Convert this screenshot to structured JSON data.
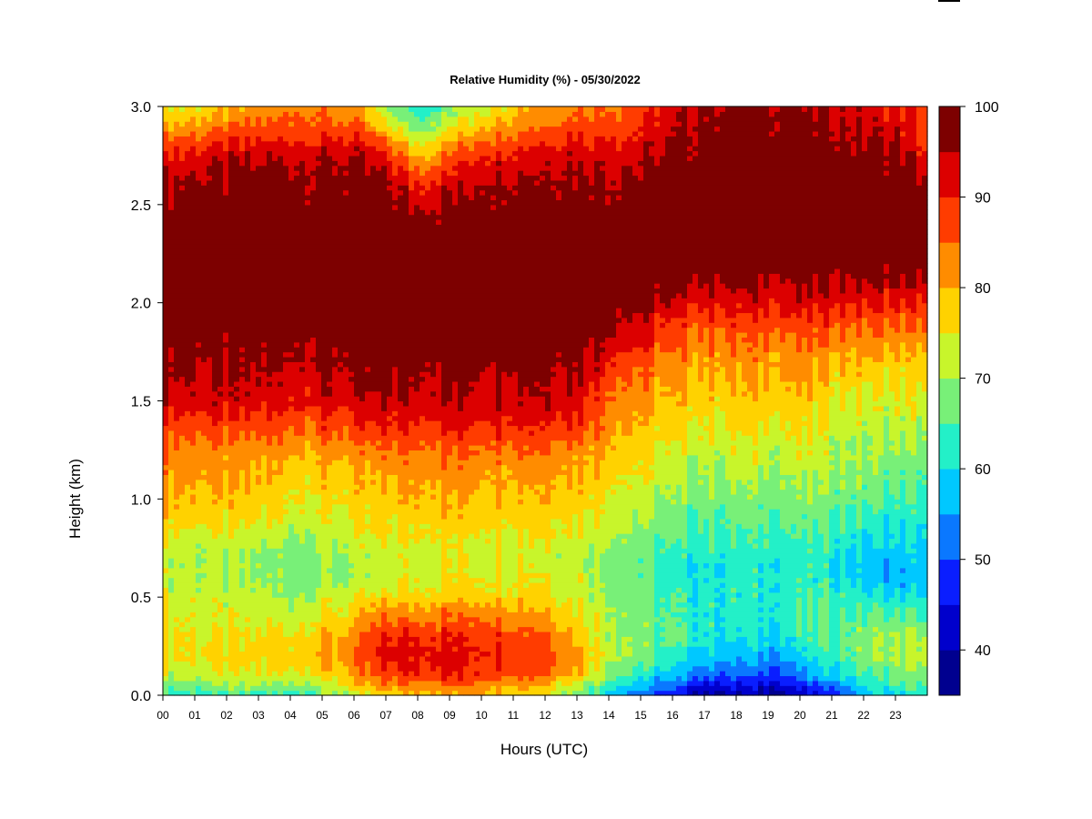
{
  "chart_data": {
    "type": "heatmap",
    "title": "Relative Humidity (%) - 05/30/2022",
    "xlabel": "Hours (UTC)",
    "ylabel": "Height (km)",
    "xlim": [
      0,
      24
    ],
    "ylim": [
      0.0,
      3.0
    ],
    "x_ticks": [
      "00",
      "01",
      "02",
      "03",
      "04",
      "05",
      "06",
      "07",
      "08",
      "09",
      "10",
      "11",
      "12",
      "13",
      "14",
      "15",
      "16",
      "17",
      "18",
      "19",
      "20",
      "21",
      "22",
      "23"
    ],
    "y_ticks": [
      "0.0",
      "0.5",
      "1.0",
      "1.5",
      "2.0",
      "2.5",
      "3.0"
    ],
    "colorbar": {
      "levels": [
        35,
        40,
        45,
        50,
        55,
        60,
        65,
        70,
        75,
        80,
        85,
        90,
        95,
        100
      ],
      "labels": [
        "40",
        "50",
        "60",
        "70",
        "80",
        "90",
        "100"
      ],
      "colors": [
        "#00008f",
        "#0000cc",
        "#0a1eff",
        "#0a78ff",
        "#00c8ff",
        "#23f0c8",
        "#78f078",
        "#c8f52b",
        "#ffd200",
        "#ff8c00",
        "#ff3c00",
        "#dc0000",
        "#7d0000"
      ]
    },
    "heights_km": [
      0.0,
      0.05,
      0.1,
      0.2,
      0.3,
      0.4,
      0.5,
      0.6,
      0.7,
      0.8,
      0.9,
      1.0,
      1.1,
      1.2,
      1.3,
      1.4,
      1.5,
      1.6,
      1.7,
      1.8,
      1.9,
      2.0,
      2.1,
      2.2,
      2.3,
      2.4,
      2.5,
      2.6,
      2.7,
      2.8,
      2.9,
      3.0
    ],
    "hours_utc": [
      0,
      2,
      4,
      6,
      7,
      8,
      10,
      12,
      13,
      14,
      15,
      16,
      17,
      18,
      19,
      20,
      21,
      22,
      23,
      24
    ],
    "rh_percent": [
      [
        62,
        63,
        62,
        70,
        76,
        80,
        80,
        76,
        68,
        60,
        52,
        45,
        40,
        40,
        38,
        40,
        48,
        55,
        60,
        62
      ],
      [
        66,
        68,
        68,
        76,
        82,
        84,
        84,
        80,
        72,
        64,
        56,
        50,
        45,
        44,
        42,
        45,
        52,
        60,
        64,
        65
      ],
      [
        72,
        73,
        74,
        80,
        87,
        90,
        90,
        86,
        80,
        70,
        62,
        56,
        52,
        50,
        48,
        52,
        58,
        64,
        66,
        68
      ],
      [
        76,
        76,
        78,
        84,
        92,
        92,
        92,
        88,
        82,
        74,
        68,
        62,
        58,
        57,
        56,
        58,
        64,
        68,
        70,
        72
      ],
      [
        76,
        75,
        76,
        82,
        90,
        90,
        90,
        86,
        80,
        72,
        68,
        64,
        62,
        60,
        60,
        62,
        66,
        68,
        70,
        70
      ],
      [
        75,
        73,
        73,
        78,
        84,
        84,
        86,
        82,
        78,
        72,
        68,
        64,
        62,
        62,
        62,
        64,
        66,
        66,
        66,
        66
      ],
      [
        74,
        72,
        70,
        74,
        76,
        78,
        78,
        78,
        74,
        70,
        66,
        64,
        62,
        62,
        62,
        64,
        64,
        62,
        60,
        60
      ],
      [
        72,
        70,
        68,
        70,
        72,
        74,
        76,
        76,
        74,
        70,
        66,
        62,
        62,
        62,
        62,
        62,
        62,
        58,
        56,
        56
      ],
      [
        72,
        70,
        68,
        70,
        72,
        74,
        74,
        74,
        72,
        70,
        66,
        62,
        62,
        62,
        62,
        62,
        62,
        58,
        58,
        58
      ],
      [
        74,
        72,
        70,
        72,
        74,
        76,
        76,
        76,
        74,
        72,
        68,
        64,
        64,
        64,
        64,
        64,
        64,
        60,
        60,
        60
      ],
      [
        78,
        76,
        74,
        74,
        76,
        78,
        78,
        78,
        76,
        74,
        70,
        66,
        66,
        66,
        66,
        66,
        66,
        64,
        62,
        62
      ],
      [
        80,
        78,
        76,
        76,
        78,
        80,
        80,
        80,
        78,
        76,
        72,
        68,
        68,
        68,
        68,
        68,
        68,
        66,
        64,
        64
      ],
      [
        82,
        80,
        78,
        78,
        80,
        82,
        82,
        82,
        80,
        78,
        74,
        70,
        70,
        70,
        70,
        70,
        70,
        68,
        66,
        66
      ],
      [
        84,
        82,
        80,
        80,
        82,
        84,
        84,
        84,
        82,
        80,
        76,
        72,
        72,
        72,
        72,
        72,
        72,
        70,
        68,
        68
      ],
      [
        86,
        84,
        84,
        84,
        86,
        88,
        88,
        88,
        86,
        82,
        78,
        74,
        74,
        74,
        74,
        74,
        72,
        70,
        70,
        70
      ],
      [
        90,
        88,
        88,
        88,
        90,
        92,
        92,
        92,
        90,
        84,
        80,
        76,
        76,
        76,
        76,
        76,
        74,
        72,
        72,
        72
      ],
      [
        94,
        92,
        92,
        92,
        94,
        95,
        95,
        95,
        94,
        86,
        82,
        78,
        78,
        78,
        78,
        78,
        76,
        74,
        74,
        74
      ],
      [
        96,
        94,
        94,
        95,
        96,
        96,
        96,
        96,
        96,
        88,
        84,
        80,
        80,
        80,
        80,
        80,
        78,
        76,
        76,
        76
      ],
      [
        97,
        95,
        96,
        96,
        97,
        98,
        98,
        98,
        97,
        92,
        86,
        82,
        82,
        82,
        82,
        82,
        80,
        80,
        78,
        78
      ],
      [
        98,
        96,
        97,
        97,
        98,
        99,
        99,
        99,
        99,
        96,
        90,
        85,
        84,
        84,
        84,
        84,
        84,
        82,
        82,
        82
      ],
      [
        99,
        98,
        98,
        99,
        99,
        99,
        99,
        99,
        99,
        98,
        94,
        88,
        88,
        88,
        88,
        88,
        88,
        86,
        86,
        86
      ],
      [
        99,
        99,
        99,
        99,
        99,
        99,
        99,
        99,
        99,
        99,
        97,
        93,
        92,
        92,
        92,
        92,
        92,
        91,
        90,
        90
      ],
      [
        99,
        99,
        99,
        99,
        99,
        99,
        99,
        99,
        99,
        99,
        99,
        97,
        96,
        96,
        95,
        95,
        95,
        95,
        95,
        95
      ],
      [
        99,
        99,
        99,
        99,
        99,
        99,
        99,
        99,
        99,
        99,
        99,
        99,
        99,
        99,
        99,
        99,
        99,
        99,
        99,
        99
      ],
      [
        99,
        99,
        99,
        99,
        99,
        99,
        99,
        99,
        99,
        99,
        99,
        99,
        99,
        99,
        99,
        99,
        99,
        99,
        99,
        99
      ],
      [
        99,
        99,
        99,
        99,
        99,
        98,
        99,
        99,
        99,
        99,
        99,
        99,
        99,
        99,
        99,
        99,
        99,
        99,
        99,
        99
      ],
      [
        98,
        98,
        98,
        98,
        98,
        95,
        98,
        98,
        98,
        98,
        98,
        99,
        99,
        99,
        99,
        99,
        99,
        99,
        99,
        98
      ],
      [
        96,
        97,
        97,
        97,
        96,
        90,
        96,
        97,
        97,
        97,
        97,
        98,
        99,
        99,
        99,
        99,
        99,
        99,
        99,
        96
      ],
      [
        93,
        95,
        96,
        96,
        92,
        84,
        93,
        95,
        96,
        95,
        95,
        97,
        99,
        99,
        99,
        99,
        99,
        98,
        97,
        93
      ],
      [
        88,
        90,
        92,
        92,
        86,
        76,
        88,
        91,
        93,
        92,
        92,
        95,
        98,
        99,
        99,
        98,
        98,
        96,
        95,
        90
      ],
      [
        80,
        84,
        88,
        86,
        76,
        68,
        80,
        86,
        88,
        88,
        90,
        94,
        97,
        98,
        98,
        97,
        96,
        94,
        93,
        88
      ],
      [
        74,
        78,
        84,
        82,
        70,
        62,
        74,
        82,
        85,
        85,
        88,
        92,
        96,
        97,
        97,
        96,
        95,
        92,
        91,
        86
      ]
    ]
  }
}
